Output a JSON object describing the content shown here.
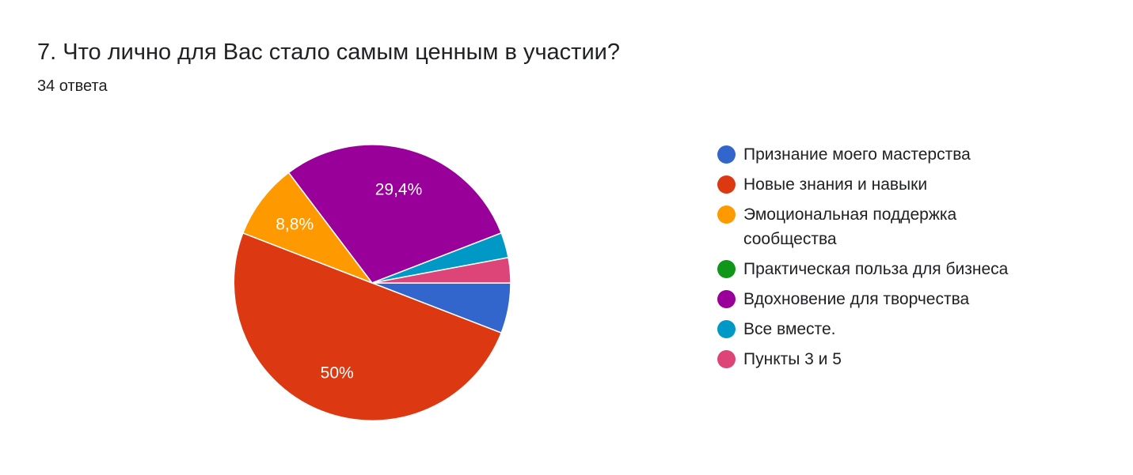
{
  "question": {
    "title": "7. Что лично для Вас стало самым ценным в участии?",
    "responses": "34 ответа"
  },
  "chart_data": {
    "type": "pie",
    "total": 34,
    "start_angle_deg": 90,
    "direction": "clockwise",
    "legend_position": "right",
    "slices": [
      {
        "label": "Признание моего мастерства",
        "count": 2,
        "percent": 5.9,
        "display": "",
        "color": "#3366cc"
      },
      {
        "label": "Новые знания и навыки",
        "count": 17,
        "percent": 50,
        "display": "50%",
        "color": "#dc3912"
      },
      {
        "label": "Эмоциональная поддержка сообщества",
        "count": 3,
        "percent": 8.8,
        "display": "8,8%",
        "color": "#ff9900"
      },
      {
        "label": "Практическая польза для бизнеса",
        "count": 0,
        "percent": 0,
        "display": "",
        "color": "#109618"
      },
      {
        "label": "Вдохновение для творчества",
        "count": 10,
        "percent": 29.4,
        "display": "29,4%",
        "color": "#990099"
      },
      {
        "label": "Все вместе.",
        "count": 1,
        "percent": 2.9,
        "display": "",
        "color": "#0099c6"
      },
      {
        "label": "Пункты 3 и 5",
        "count": 1,
        "percent": 2.9,
        "display": "",
        "color": "#dd4477"
      }
    ]
  }
}
